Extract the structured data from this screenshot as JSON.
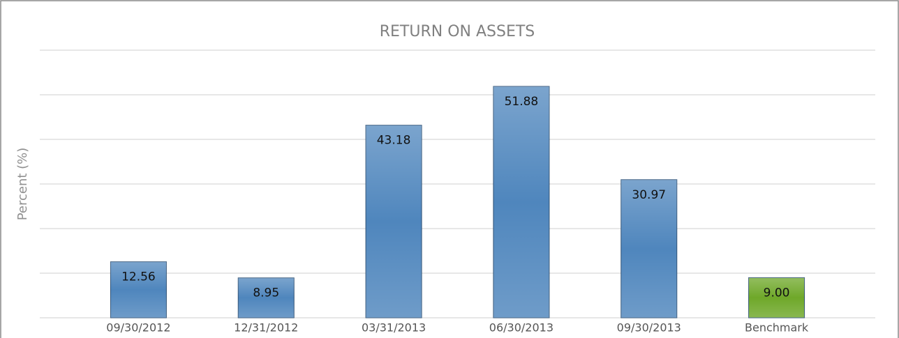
{
  "chart_data": {
    "type": "bar",
    "title": "RETURN ON ASSETS",
    "y_label": "Percent (%)",
    "categories": [
      "09/30/2012",
      "12/31/2012",
      "03/31/2013",
      "06/30/2013",
      "09/30/2013",
      "Benchmark"
    ],
    "values": [
      12.56,
      8.95,
      43.18,
      51.88,
      30.97,
      9
    ],
    "value_labels": [
      "12.56",
      "8.95",
      "43.18",
      "51.88",
      "30.97",
      "9.00"
    ],
    "colors": [
      "#4f86bd",
      "#4f86bd",
      "#4f86bd",
      "#4f86bd",
      "#4f86bd",
      "#6fa82a"
    ],
    "ylim": [
      0,
      60
    ],
    "yticks": [
      0,
      10,
      20,
      30,
      40,
      50,
      60
    ],
    "grid": true
  }
}
